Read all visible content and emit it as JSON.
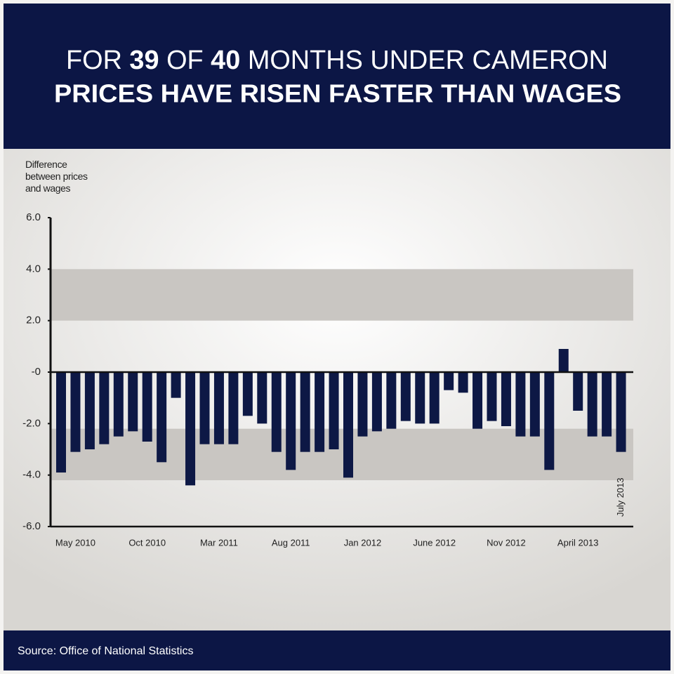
{
  "chart_data": {
    "type": "bar",
    "title": [
      "FOR",
      "39",
      "OF",
      "40",
      "MONTHS UNDER CAMERON"
    ],
    "subtitle": "PRICES HAVE RISEN FASTER THAN WAGES",
    "ylabel": "Difference between prices and wages",
    "source": "Source: Office of National Statistics",
    "categories": [
      null,
      "May 2010",
      null,
      null,
      null,
      null,
      "Oct 2010",
      null,
      null,
      null,
      null,
      "Mar 2011",
      null,
      null,
      null,
      null,
      "Aug 2011",
      null,
      null,
      null,
      null,
      "Jan 2012",
      null,
      null,
      null,
      null,
      "June 2012",
      null,
      null,
      null,
      null,
      "Nov 2012",
      null,
      null,
      null,
      null,
      "April 2013",
      null,
      null,
      "July 2013"
    ],
    "values": [
      -3.9,
      -3.1,
      -3.0,
      -2.8,
      -2.5,
      -2.3,
      -2.7,
      -3.5,
      -1.0,
      -4.4,
      -2.8,
      -2.8,
      -2.8,
      -1.7,
      -2.0,
      -3.1,
      -3.8,
      -3.1,
      -3.1,
      -3.0,
      -4.1,
      -2.5,
      -2.3,
      -2.2,
      -1.9,
      -2.0,
      -2.0,
      -0.7,
      -0.8,
      -2.2,
      -1.9,
      -2.1,
      -2.5,
      -2.5,
      -3.8,
      0.9,
      -1.5,
      -2.5,
      -2.5,
      -3.1
    ],
    "color": "#0d1845",
    "ylim": [
      -6,
      6
    ],
    "yticks": [
      {
        "value": 6,
        "label": "6.0"
      },
      {
        "value": 4,
        "label": "4.0"
      },
      {
        "value": 2,
        "label": "2.0"
      },
      {
        "value": 0,
        "label": "-0"
      },
      {
        "value": -2,
        "label": "-2.0"
      },
      {
        "value": -4,
        "label": "-4.0"
      },
      {
        "value": -6,
        "label": "-6.0"
      }
    ],
    "bands": [
      {
        "from": 2,
        "to": 4
      },
      {
        "from": -2.2,
        "to": -4.2
      }
    ],
    "band_color": "#c9c6c2"
  }
}
